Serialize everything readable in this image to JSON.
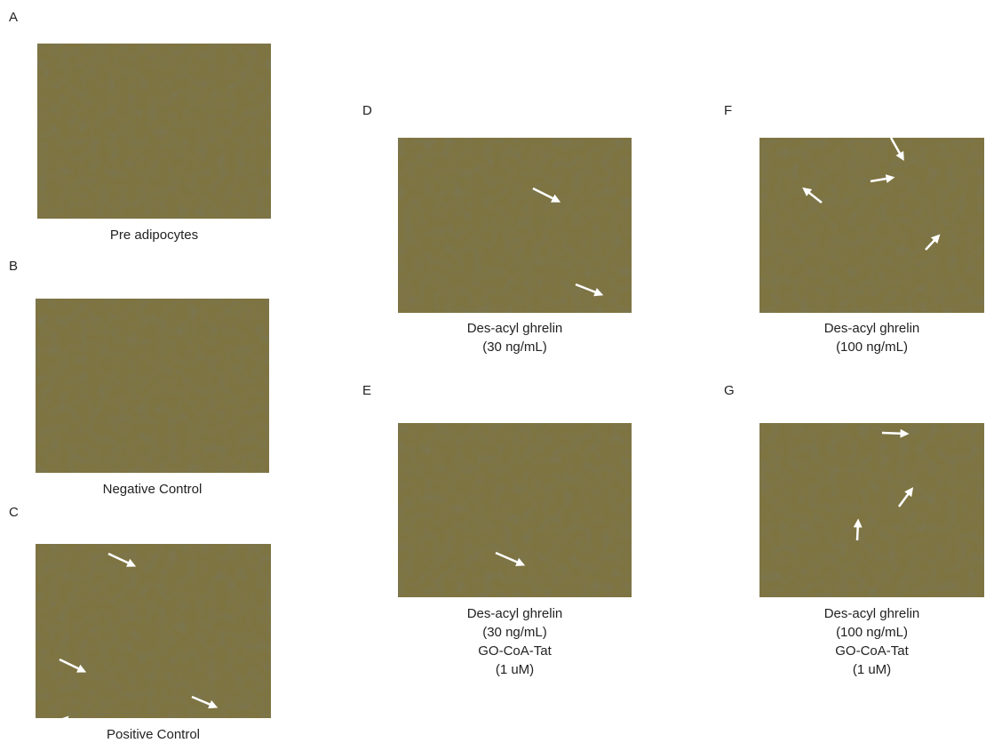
{
  "panels": [
    {
      "letter": "A",
      "caption": [
        "Pre adipocytes"
      ]
    },
    {
      "letter": "B",
      "caption": [
        "Negative Control"
      ]
    },
    {
      "letter": "C",
      "caption": [
        "Positive Control"
      ]
    },
    {
      "letter": "D",
      "caption": [
        "Des-acyl ghrelin",
        "(30 ng/mL)"
      ]
    },
    {
      "letter": "E",
      "caption": [
        "Des-acyl ghrelin",
        "(30 ng/mL)",
        "GO-CoA-Tat",
        "(1 uM)"
      ]
    },
    {
      "letter": "F",
      "caption": [
        "Des-acyl ghrelin",
        "(100 ng/mL)"
      ]
    },
    {
      "letter": "G",
      "caption": [
        "Des-acyl ghrelin",
        "(100 ng/mL)",
        "GO-CoA-Tat",
        "(1 uM)"
      ]
    }
  ]
}
